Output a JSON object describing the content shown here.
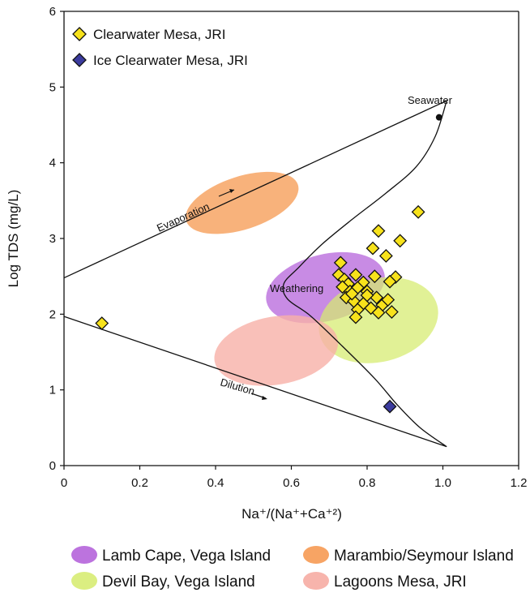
{
  "chart_data": {
    "type": "scatter",
    "xlabel": "Na⁺/(Na⁺+Ca⁺²)",
    "ylabel": "Log TDS (mg/L)",
    "xlim": [
      0,
      1.2
    ],
    "ylim": [
      0,
      6
    ],
    "xticks": [
      "0",
      "0.2",
      "0.4",
      "0.6",
      "0.8",
      "1.0",
      "1.2"
    ],
    "yticks": [
      "0",
      "1",
      "2",
      "3",
      "4",
      "5",
      "6"
    ],
    "legend_position": "top-left",
    "series": [
      {
        "name": "Clearwater Mesa, JRI",
        "marker": "diamond",
        "color": "#f7e21b",
        "points": [
          [
            0.1,
            1.88
          ],
          [
            0.935,
            3.35
          ],
          [
            0.83,
            3.1
          ],
          [
            0.887,
            2.97
          ],
          [
            0.815,
            2.87
          ],
          [
            0.85,
            2.77
          ],
          [
            0.73,
            2.68
          ],
          [
            0.82,
            2.5
          ],
          [
            0.875,
            2.49
          ],
          [
            0.86,
            2.43
          ],
          [
            0.725,
            2.52
          ],
          [
            0.74,
            2.46
          ],
          [
            0.75,
            2.4
          ],
          [
            0.77,
            2.52
          ],
          [
            0.79,
            2.42
          ],
          [
            0.735,
            2.36
          ],
          [
            0.755,
            2.3
          ],
          [
            0.775,
            2.35
          ],
          [
            0.8,
            2.3
          ],
          [
            0.825,
            2.22
          ],
          [
            0.745,
            2.22
          ],
          [
            0.765,
            2.17
          ],
          [
            0.79,
            2.14
          ],
          [
            0.81,
            2.08
          ],
          [
            0.84,
            2.12
          ],
          [
            0.855,
            2.19
          ],
          [
            0.775,
            2.06
          ],
          [
            0.83,
            2.02
          ],
          [
            0.865,
            2.03
          ],
          [
            0.77,
            1.96
          ],
          [
            0.8,
            2.25
          ],
          [
            0.76,
            2.27
          ]
        ]
      },
      {
        "name": "Ice Clearwater Mesa, JRI",
        "marker": "diamond",
        "color": "#3b3b9e",
        "points": [
          [
            0.86,
            0.78
          ]
        ]
      },
      {
        "name": "Seawater",
        "marker": "circle",
        "color": "#111111",
        "points": [
          [
            0.99,
            4.6
          ]
        ]
      }
    ],
    "regions": [
      {
        "name": "Lamb Cape, Vega Island",
        "color": "#b05ad8",
        "opacity": 0.7,
        "cx": 0.69,
        "cy": 2.35,
        "rx": 0.16,
        "ry": 0.44
      },
      {
        "name": "Devil Bay, Vega Island",
        "color": "#d6ec6e",
        "opacity": 0.72,
        "cx": 0.83,
        "cy": 1.92,
        "rx": 0.16,
        "ry": 0.55
      },
      {
        "name": "Marambio/Seymour Island",
        "color": "#f7a464",
        "opacity": 0.85,
        "cx": 0.47,
        "cy": 3.47,
        "rx": 0.155,
        "ry": 0.35
      },
      {
        "name": "Lagoons Mesa, JRI",
        "color": "#f7b0a8",
        "opacity": 0.8,
        "cx": 0.56,
        "cy": 1.52,
        "rx": 0.165,
        "ry": 0.45
      }
    ],
    "annotations": {
      "seawater": "Seawater",
      "evaporation": "Evaporation",
      "weathering": "Weathering",
      "dilution": "Dilution"
    },
    "boomerang_envelope": [
      [
        0,
        2.48
      ],
      [
        1.01,
        4.82
      ],
      [
        1.01,
        4.82
      ],
      [
        0.98,
        4.35
      ],
      [
        0.93,
        3.95
      ],
      [
        0.85,
        3.6
      ],
      [
        0.76,
        3.25
      ],
      [
        0.68,
        2.92
      ],
      [
        0.62,
        2.62
      ],
      [
        0.58,
        2.4
      ],
      [
        0.59,
        2.2
      ],
      [
        0.65,
        1.98
      ],
      [
        0.73,
        1.6
      ],
      [
        0.82,
        1.15
      ],
      [
        0.88,
        0.8
      ],
      [
        0.94,
        0.5
      ],
      [
        1.01,
        0.25
      ],
      [
        0,
        1.97
      ]
    ]
  }
}
